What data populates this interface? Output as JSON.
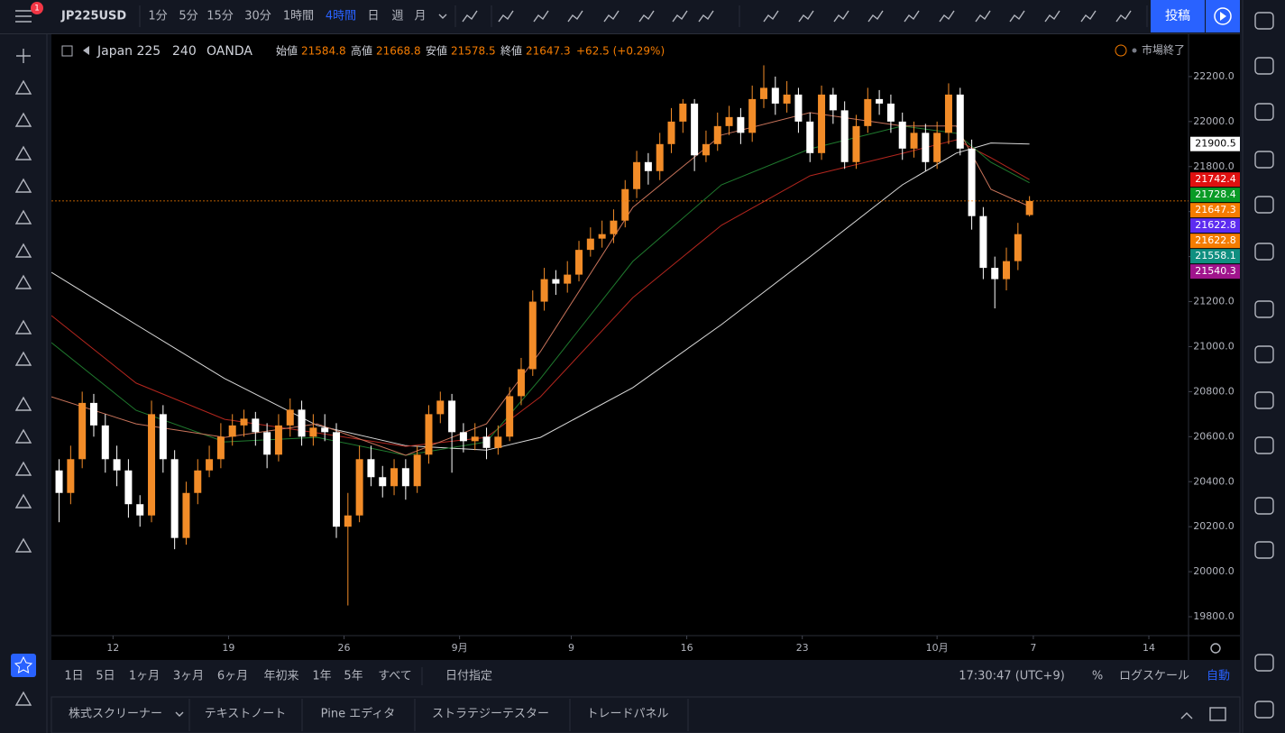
{
  "toolbar": {
    "symbol": "JP225USD",
    "notification_count": 1,
    "intervals": [
      "1分",
      "5分",
      "15分",
      "30分",
      "1時間",
      "4時間",
      "日",
      "週",
      "月"
    ],
    "active_interval": 5,
    "post_button": "投稿"
  },
  "legend": {
    "symbol": "Japan 225",
    "interval": 240,
    "source": "OANDA",
    "ohlc_labels": [
      "始値",
      "高値",
      "安値",
      "終値"
    ],
    "change": "+62.5 (+0.29%)",
    "status": "市場終了"
  },
  "chart_data": {
    "type": "candlestick",
    "up_color": "#f28c28",
    "down_color": "#ffffff",
    "grid": false,
    "x": [
      2,
      5,
      8,
      11,
      14,
      17,
      20,
      23,
      26,
      29,
      32,
      35,
      38,
      41,
      44,
      47,
      50,
      53,
      56,
      59,
      62,
      65,
      68,
      71,
      74,
      77,
      80,
      83,
      86,
      89,
      92,
      95,
      98,
      101,
      104,
      107,
      110,
      113,
      116,
      119,
      122,
      125,
      128,
      131,
      134,
      137,
      140,
      143,
      146,
      149,
      152,
      155,
      158,
      161,
      164,
      167,
      170,
      173,
      176,
      179,
      182,
      185,
      188,
      191,
      194,
      197,
      200,
      203,
      206,
      209,
      212,
      215,
      218,
      221,
      224,
      227,
      230,
      233,
      236,
      239,
      242,
      245,
      248,
      251,
      254
    ],
    "open": [
      20450,
      20350,
      20500,
      20750,
      20650,
      20500,
      20450,
      20300,
      20250,
      20700,
      20500,
      20150,
      20350,
      20450,
      20500,
      20600,
      20650,
      20680,
      20620,
      20520,
      20650,
      20720,
      20600,
      20640,
      20620,
      20200,
      20250,
      20500,
      20420,
      20380,
      20460,
      20380,
      20520,
      20700,
      20760,
      20620,
      20580,
      20600,
      20550,
      20600,
      20780,
      20900,
      21200,
      21300,
      21280,
      21320,
      21430,
      21480,
      21500,
      21560,
      21700,
      21820,
      21780,
      21900,
      22000,
      22080,
      21850,
      21900,
      21980,
      22020,
      21950,
      22100,
      22150,
      22080,
      22120,
      22000,
      21860,
      22120,
      22050,
      21820,
      21980,
      22100,
      22080,
      22000,
      21880,
      21950,
      21820,
      21950,
      22120,
      21880,
      21580,
      21350,
      21300,
      21380,
      21584.8
    ],
    "high": [
      20500,
      20560,
      20800,
      20790,
      20700,
      20560,
      20500,
      20340,
      20760,
      20740,
      20540,
      20400,
      20500,
      20560,
      20660,
      20700,
      20720,
      20710,
      20660,
      20700,
      20770,
      20760,
      20700,
      20700,
      20660,
      20350,
      20560,
      20560,
      20470,
      20500,
      20500,
      20560,
      20740,
      20800,
      20790,
      20660,
      20660,
      20640,
      20650,
      20820,
      20950,
      21250,
      21350,
      21340,
      21380,
      21470,
      21530,
      21560,
      21610,
      21740,
      21870,
      21860,
      21950,
      22060,
      22100,
      22100,
      21960,
      22040,
      22070,
      22060,
      22160,
      22250,
      22200,
      22180,
      22150,
      22040,
      22160,
      22150,
      22090,
      22030,
      22150,
      22140,
      22120,
      22040,
      22000,
      21990,
      22000,
      22170,
      22150,
      21920,
      21620,
      21400,
      21440,
      21550,
      21668.8
    ],
    "low": [
      20220,
      20300,
      20460,
      20600,
      20440,
      20380,
      20240,
      20200,
      20220,
      20440,
      20100,
      20120,
      20300,
      20420,
      20460,
      20560,
      20600,
      20560,
      20460,
      20490,
      20600,
      20560,
      20560,
      20580,
      20150,
      19850,
      20220,
      20380,
      20330,
      20340,
      20320,
      20350,
      20480,
      20660,
      20440,
      20530,
      20540,
      20500,
      20520,
      20580,
      20740,
      20870,
      21160,
      21230,
      21240,
      21290,
      21400,
      21440,
      21460,
      21530,
      21660,
      21720,
      21740,
      21860,
      21950,
      21780,
      21820,
      21870,
      21940,
      21900,
      21910,
      22060,
      22030,
      22040,
      21950,
      21820,
      21830,
      21990,
      21790,
      21790,
      21950,
      22030,
      21950,
      21830,
      21840,
      21780,
      21790,
      21900,
      21850,
      21520,
      21300,
      21170,
      21250,
      21340,
      21578.5
    ],
    "close": [
      20350,
      20500,
      20750,
      20650,
      20500,
      20450,
      20300,
      20250,
      20700,
      20500,
      20150,
      20350,
      20450,
      20500,
      20600,
      20650,
      20680,
      20620,
      20520,
      20650,
      20720,
      20600,
      20640,
      20620,
      20200,
      20250,
      20500,
      20420,
      20380,
      20460,
      20380,
      20520,
      20700,
      20760,
      20620,
      20580,
      20600,
      20550,
      20600,
      20780,
      20900,
      21200,
      21300,
      21280,
      21320,
      21430,
      21480,
      21500,
      21560,
      21700,
      21820,
      21780,
      21900,
      22000,
      22080,
      21850,
      21900,
      21980,
      22020,
      21950,
      22100,
      22150,
      22080,
      22120,
      22000,
      21860,
      22120,
      22050,
      21820,
      21980,
      22100,
      22080,
      22000,
      21880,
      21950,
      21820,
      21950,
      22120,
      21880,
      21580,
      21350,
      21300,
      21380,
      21500,
      21647.3
    ],
    "lines": [
      {
        "color": "#d9d9d9",
        "x": [
          0,
          22,
          45,
          69,
          92,
          113,
          127,
          151,
          174,
          197,
          221,
          235,
          244,
          254
        ],
        "values": [
          21330,
          21098,
          20858,
          20650,
          20560,
          20540,
          20597,
          20818,
          21098,
          21399,
          21719,
          21860,
          21905,
          21900.5
        ]
      },
      {
        "color": "#b3261e",
        "x": [
          0,
          22,
          45,
          69,
          92,
          113,
          127,
          151,
          174,
          197,
          221,
          235,
          244,
          254
        ],
        "values": [
          21138,
          20838,
          20677,
          20617,
          20557,
          20597,
          20777,
          21218,
          21539,
          21759,
          21859,
          21919,
          21839,
          21742.4
        ]
      },
      {
        "color": "#1f7a2e",
        "x": [
          0,
          22,
          45,
          69,
          92,
          113,
          127,
          151,
          174,
          197,
          221,
          235,
          244,
          254
        ],
        "values": [
          21018,
          20717,
          20577,
          20597,
          20517,
          20577,
          20858,
          21379,
          21719,
          21879,
          21980,
          21948,
          21819,
          21728.4
        ]
      },
      {
        "color": "#c8735a",
        "x": [
          0,
          22,
          45,
          69,
          92,
          113,
          127,
          151,
          174,
          197,
          221,
          235,
          244,
          254
        ],
        "values": [
          20777,
          20657,
          20597,
          20657,
          20517,
          20657,
          20978,
          21619,
          21940,
          22040,
          21980,
          21980,
          21699,
          21622.8
        ]
      }
    ],
    "last_price_color": "#f57c00",
    "price_labels": [
      {
        "value": 21900.5,
        "color": "#ffffff"
      },
      {
        "value": 21742.4,
        "color": "#e01010"
      },
      {
        "value": 21728.4,
        "color": "#0a9b26"
      },
      {
        "value": 21647.3,
        "color": "#f57c00"
      },
      {
        "value": 21622.8,
        "color": "#5d2cf0"
      },
      {
        "value": 21622.8,
        "color": "#f57c00"
      },
      {
        "value": 21558.1,
        "color": "#0f8f80"
      },
      {
        "value": 21540.3,
        "color": "#a0148c"
      }
    ],
    "xlim": [
      0,
      295.3
    ],
    "xticks": [
      {
        "value": 16,
        "label": "12"
      },
      {
        "value": 46,
        "label": "19"
      },
      {
        "value": 76,
        "label": "26"
      },
      {
        "value": 106,
        "label": "9月"
      },
      {
        "value": 135,
        "label": "9"
      },
      {
        "value": 165,
        "label": "16"
      },
      {
        "value": 195,
        "label": "23"
      },
      {
        "value": 230,
        "label": "10月"
      },
      {
        "value": 255,
        "label": "7"
      },
      {
        "value": 285,
        "label": "14"
      }
    ],
    "ylim": [
      19716,
      22388
    ],
    "yticks": [
      {
        "value": 19800,
        "label": "19800.0"
      },
      {
        "value": 20000,
        "label": "20000.0"
      },
      {
        "value": 20200,
        "label": "20200.0"
      },
      {
        "value": 20400,
        "label": "20400.0"
      },
      {
        "value": 20600,
        "label": "20600.0"
      },
      {
        "value": 20800,
        "label": "20800.0"
      },
      {
        "value": 21000,
        "label": "21000.0"
      },
      {
        "value": 21200,
        "label": "21200.0"
      },
      {
        "value": 21400,
        "label": "21400.0"
      },
      {
        "value": 21600,
        "label": "21600.0"
      },
      {
        "value": 21800,
        "label": "21800.0"
      },
      {
        "value": 22000,
        "label": "22000.0"
      },
      {
        "value": 22200,
        "label": "22200.0"
      }
    ]
  },
  "ranges": [
    "1日",
    "5日",
    "1ヶ月",
    "3ヶ月",
    "6ヶ月",
    "年初来",
    "1年",
    "5年",
    "すべて"
  ],
  "custom_range": "日付指定",
  "clock": "17:30:47 (UTC+9)",
  "scale_options": [
    "%",
    "ログスケール",
    "自動"
  ],
  "tabs": [
    "株式スクリーナー",
    "テキストノート",
    "Pine エディタ",
    "ストラテジーテスター",
    "トレードパネル"
  ]
}
